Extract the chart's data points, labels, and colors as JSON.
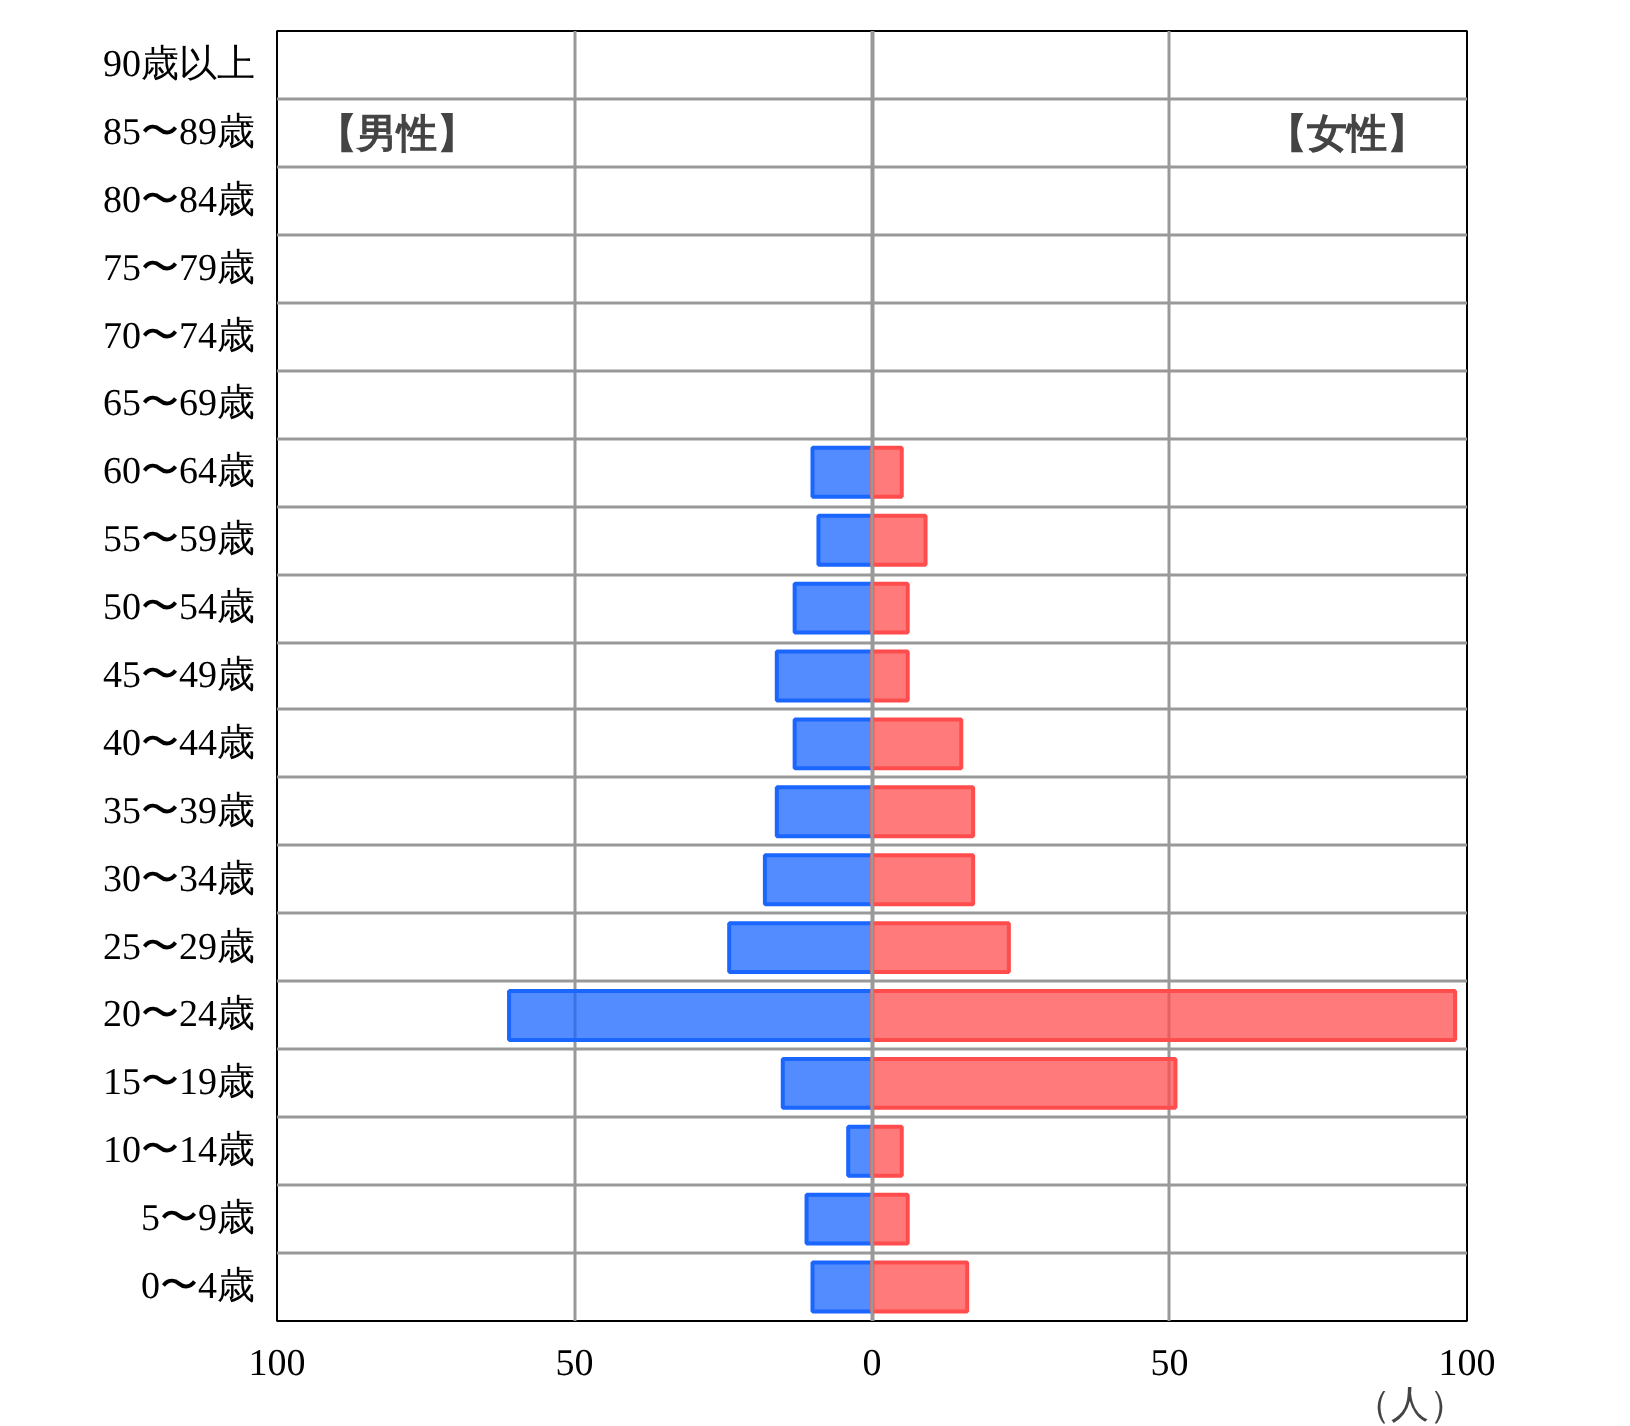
{
  "chart_data": {
    "type": "bar",
    "orientation": "horizontal",
    "categories": [
      "90歳以上",
      "85〜89歳",
      "80〜84歳",
      "75〜79歳",
      "70〜74歳",
      "65〜69歳",
      "60〜64歳",
      "55〜59歳",
      "50〜54歳",
      "45〜49歳",
      "40〜44歳",
      "35〜39歳",
      "30〜34歳",
      "25〜29歳",
      "20〜24歳",
      "15〜19歳",
      "10〜14歳",
      "5〜9歳",
      "0〜4歳"
    ],
    "series": [
      {
        "color": "#1a66ff",
        "values": [
          0,
          0,
          0,
          0,
          0,
          0,
          -10,
          -9,
          -13,
          -16,
          -13,
          -16,
          -18,
          -24,
          -61,
          -15,
          -4,
          -11,
          -10
        ]
      },
      {
        "color": "#ff4d4d",
        "values": [
          0,
          0,
          0,
          0,
          0,
          0,
          5,
          9,
          6,
          6,
          15,
          17,
          17,
          23,
          98,
          51,
          5,
          6,
          16
        ]
      }
    ],
    "xlim": [
      -100,
      100
    ],
    "xticks": [
      {
        "value": -100,
        "label": "100"
      },
      {
        "value": -50,
        "label": "50"
      },
      0,
      50,
      100
    ],
    "xlabel": "（人）",
    "annotations": [
      "【男性】",
      "【女性】"
    ],
    "grid": true
  }
}
